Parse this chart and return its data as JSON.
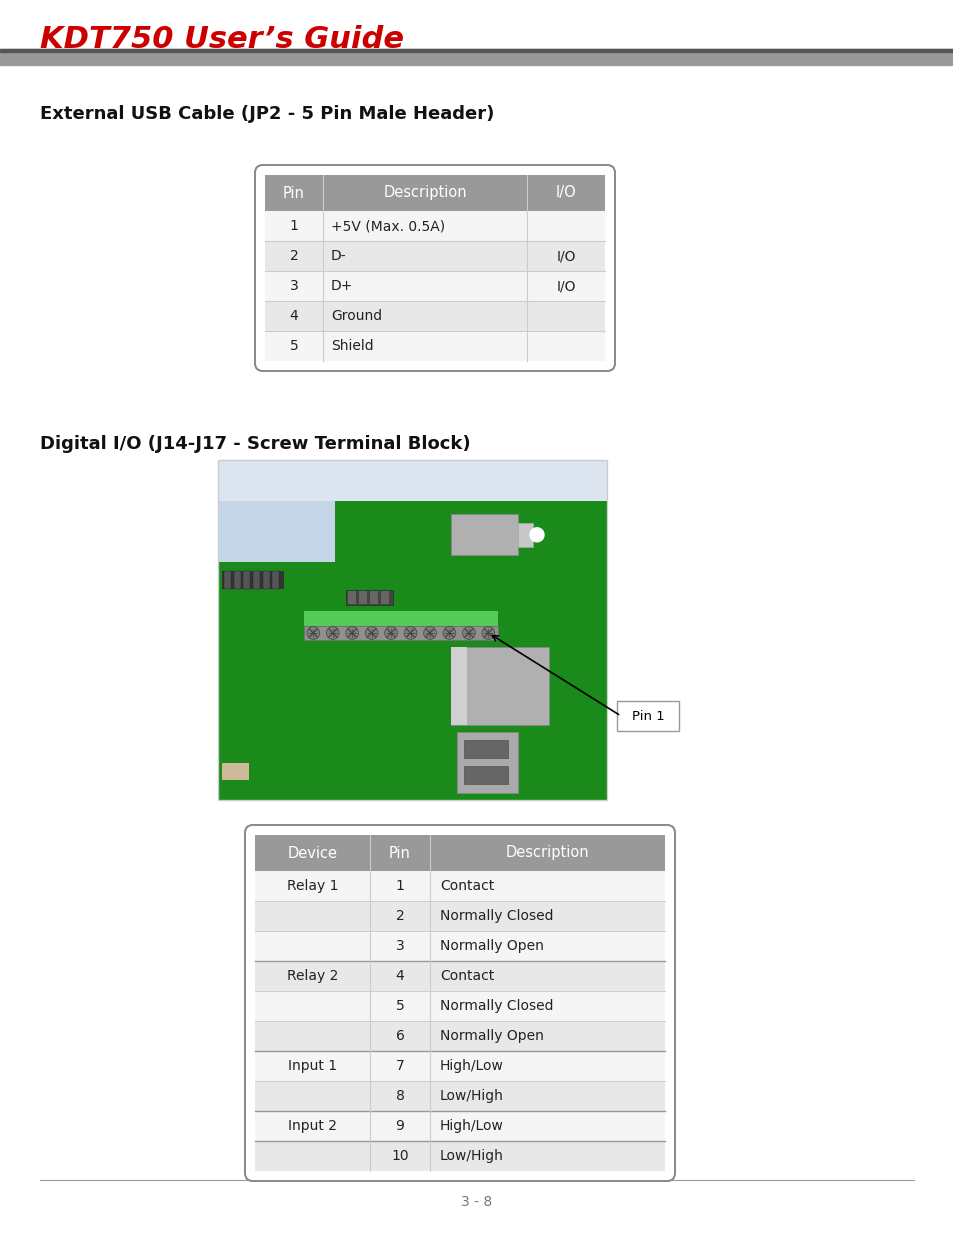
{
  "title": "KDT750 User’s Guide",
  "title_color": "#cc0000",
  "page_bg": "#ffffff",
  "header_bar_color": "#999999",
  "header_bar_dark": "#555555",
  "section1_title": "External USB Cable (JP2 - 5 Pin Male Header)",
  "section2_title": "Digital I/O (J14-J17 - Screw Terminal Block)",
  "table1_header": [
    "Pin",
    "Description",
    "I/O"
  ],
  "table1_rows": [
    [
      "1",
      "+5V (Max. 0.5A)",
      ""
    ],
    [
      "2",
      "D-",
      "I/O"
    ],
    [
      "3",
      "D+",
      "I/O"
    ],
    [
      "4",
      "Ground",
      ""
    ],
    [
      "5",
      "Shield",
      ""
    ]
  ],
  "table1_header_bg": "#999999",
  "table1_row_bg_odd": "#f5f5f5",
  "table1_row_bg_even": "#e8e8e8",
  "table2_header": [
    "Device",
    "Pin",
    "Description"
  ],
  "table2_rows": [
    [
      "Relay 1",
      "1",
      "Contact"
    ],
    [
      "",
      "2",
      "Normally Closed"
    ],
    [
      "",
      "3",
      "Normally Open"
    ],
    [
      "Relay 2",
      "4",
      "Contact"
    ],
    [
      "",
      "5",
      "Normally Closed"
    ],
    [
      "",
      "6",
      "Normally Open"
    ],
    [
      "Input 1",
      "7",
      "High/Low"
    ],
    [
      "",
      "8",
      "Low/High"
    ],
    [
      "Input 2",
      "9",
      "High/Low"
    ],
    [
      "",
      "10",
      "Low/High"
    ]
  ],
  "table2_header_bg": "#999999",
  "table2_row_bg_odd": "#f5f5f5",
  "table2_row_bg_even": "#e8e8e8",
  "footer_text": "3 - 8",
  "pin1_label": "Pin 1"
}
